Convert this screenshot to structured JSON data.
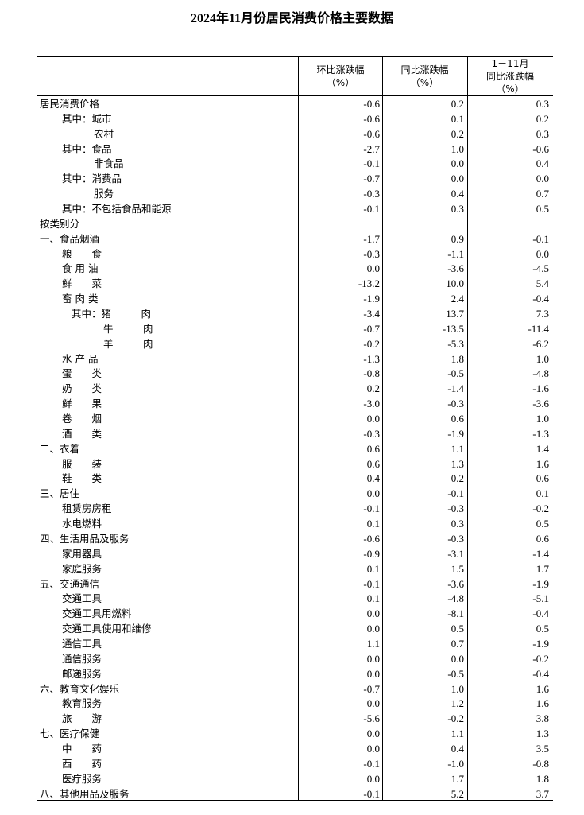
{
  "title": "2024年11月份居民消费价格主要数据",
  "headers": {
    "col1": [
      "环比涨跌幅",
      "（%）"
    ],
    "col2": [
      "同比涨跌幅",
      "（%）"
    ],
    "col3": [
      "1－11月",
      "同比涨跌幅",
      "（%）"
    ]
  },
  "rows": [
    {
      "label": "居民消费价格",
      "level": 0,
      "mom": "-0.6",
      "yoy": "0.2",
      "ytd": "0.3"
    },
    {
      "label": "其中：城市",
      "level": 1,
      "mom": "-0.6",
      "yoy": "0.1",
      "ytd": "0.2"
    },
    {
      "label": "农村",
      "level": 2,
      "mom": "-0.6",
      "yoy": "0.2",
      "ytd": "0.3"
    },
    {
      "label": "其中：食品",
      "level": 1,
      "mom": "-2.7",
      "yoy": "1.0",
      "ytd": "-0.6"
    },
    {
      "label": "非食品",
      "level": 2,
      "mom": "-0.1",
      "yoy": "0.0",
      "ytd": "0.4"
    },
    {
      "label": "其中：消费品",
      "level": 1,
      "mom": "-0.7",
      "yoy": "0.0",
      "ytd": "0.0"
    },
    {
      "label": "服务",
      "level": 2,
      "mom": "-0.3",
      "yoy": "0.4",
      "ytd": "0.7"
    },
    {
      "label": "其中：不包括食品和能源",
      "level": 1,
      "mom": "-0.1",
      "yoy": "0.3",
      "ytd": "0.5"
    },
    {
      "label": "按类别分",
      "level": 0,
      "mom": "",
      "yoy": "",
      "ytd": ""
    },
    {
      "label": "一、食品烟酒",
      "level": 0,
      "mom": "-1.7",
      "yoy": "0.9",
      "ytd": "-0.1"
    },
    {
      "label": "粮　　食",
      "level": 1,
      "mom": "-0.3",
      "yoy": "-1.1",
      "ytd": "0.0"
    },
    {
      "label": "食 用 油",
      "level": 1,
      "mom": "0.0",
      "yoy": "-3.6",
      "ytd": "-4.5"
    },
    {
      "label": "鲜　　菜",
      "level": 1,
      "mom": "-13.2",
      "yoy": "10.0",
      "ytd": "5.4"
    },
    {
      "label": "畜 肉 类",
      "level": 1,
      "mom": "-1.9",
      "yoy": "2.4",
      "ytd": "-0.4"
    },
    {
      "label": "其中：猪　　　肉",
      "level": 3,
      "mom": "-3.4",
      "yoy": "13.7",
      "ytd": "7.3"
    },
    {
      "label": "牛　　　肉",
      "level": 4,
      "mom": "-0.7",
      "yoy": "-13.5",
      "ytd": "-11.4"
    },
    {
      "label": "羊　　　肉",
      "level": 4,
      "mom": "-0.2",
      "yoy": "-5.3",
      "ytd": "-6.2"
    },
    {
      "label": "水 产 品",
      "level": 1,
      "mom": "-1.3",
      "yoy": "1.8",
      "ytd": "1.0"
    },
    {
      "label": "蛋　　类",
      "level": 1,
      "mom": "-0.8",
      "yoy": "-0.5",
      "ytd": "-4.8"
    },
    {
      "label": "奶　　类",
      "level": 1,
      "mom": "0.2",
      "yoy": "-1.4",
      "ytd": "-1.6"
    },
    {
      "label": "鲜　　果",
      "level": 1,
      "mom": "-3.0",
      "yoy": "-0.3",
      "ytd": "-3.6"
    },
    {
      "label": "卷　　烟",
      "level": 1,
      "mom": "0.0",
      "yoy": "0.6",
      "ytd": "1.0"
    },
    {
      "label": "酒　　类",
      "level": 1,
      "mom": "-0.3",
      "yoy": "-1.9",
      "ytd": "-1.3"
    },
    {
      "label": "二、衣着",
      "level": 0,
      "mom": "0.6",
      "yoy": "1.1",
      "ytd": "1.4"
    },
    {
      "label": "服　　装",
      "level": 1,
      "mom": "0.6",
      "yoy": "1.3",
      "ytd": "1.6"
    },
    {
      "label": "鞋　　类",
      "level": 1,
      "mom": "0.4",
      "yoy": "0.2",
      "ytd": "0.6"
    },
    {
      "label": "三、居住",
      "level": 0,
      "mom": "0.0",
      "yoy": "-0.1",
      "ytd": "0.1"
    },
    {
      "label": "租赁房房租",
      "level": 1,
      "mom": "-0.1",
      "yoy": "-0.3",
      "ytd": "-0.2"
    },
    {
      "label": "水电燃料",
      "level": 1,
      "mom": "0.1",
      "yoy": "0.3",
      "ytd": "0.5"
    },
    {
      "label": "四、生活用品及服务",
      "level": 0,
      "mom": "-0.6",
      "yoy": "-0.3",
      "ytd": "0.6"
    },
    {
      "label": "家用器具",
      "level": 1,
      "mom": "-0.9",
      "yoy": "-3.1",
      "ytd": "-1.4"
    },
    {
      "label": "家庭服务",
      "level": 1,
      "mom": "0.1",
      "yoy": "1.5",
      "ytd": "1.7"
    },
    {
      "label": "五、交通通信",
      "level": 0,
      "mom": "-0.1",
      "yoy": "-3.6",
      "ytd": "-1.9"
    },
    {
      "label": "交通工具",
      "level": 1,
      "mom": "0.1",
      "yoy": "-4.8",
      "ytd": "-5.1"
    },
    {
      "label": "交通工具用燃料",
      "level": 1,
      "mom": "0.0",
      "yoy": "-8.1",
      "ytd": "-0.4"
    },
    {
      "label": "交通工具使用和维修",
      "level": 1,
      "mom": "0.0",
      "yoy": "0.5",
      "ytd": "0.5"
    },
    {
      "label": "通信工具",
      "level": 1,
      "mom": "1.1",
      "yoy": "0.7",
      "ytd": "-1.9"
    },
    {
      "label": "通信服务",
      "level": 1,
      "mom": "0.0",
      "yoy": "0.0",
      "ytd": "-0.2"
    },
    {
      "label": "邮递服务",
      "level": 1,
      "mom": "0.0",
      "yoy": "-0.5",
      "ytd": "-0.4"
    },
    {
      "label": "六、教育文化娱乐",
      "level": 0,
      "mom": "-0.7",
      "yoy": "1.0",
      "ytd": "1.6"
    },
    {
      "label": "教育服务",
      "level": 1,
      "mom": "0.0",
      "yoy": "1.2",
      "ytd": "1.6"
    },
    {
      "label": "旅　　游",
      "level": 1,
      "mom": "-5.6",
      "yoy": "-0.2",
      "ytd": "3.8"
    },
    {
      "label": "七、医疗保健",
      "level": 0,
      "mom": "0.0",
      "yoy": "1.1",
      "ytd": "1.3"
    },
    {
      "label": "中　　药",
      "level": 1,
      "mom": "0.0",
      "yoy": "0.4",
      "ytd": "3.5"
    },
    {
      "label": "西　　药",
      "level": 1,
      "mom": "-0.1",
      "yoy": "-1.0",
      "ytd": "-0.8"
    },
    {
      "label": "医疗服务",
      "level": 1,
      "mom": "0.0",
      "yoy": "1.7",
      "ytd": "1.8"
    },
    {
      "label": "八、其他用品及服务",
      "level": 0,
      "mom": "-0.1",
      "yoy": "5.2",
      "ytd": "3.7"
    }
  ]
}
